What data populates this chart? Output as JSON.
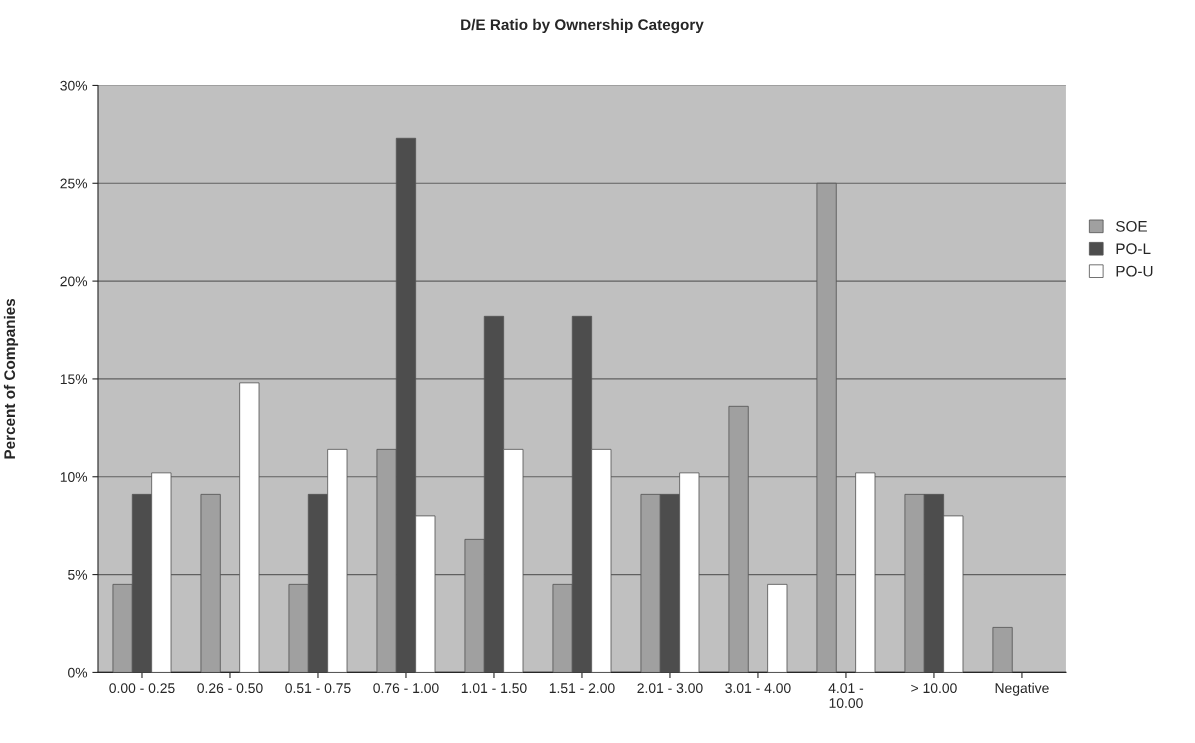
{
  "chart_data": {
    "type": "bar",
    "title": "D/E Ratio by Ownership Category",
    "ylabel": "Percent of Companies",
    "categories": [
      "0.00 - 0.25",
      "0.26 - 0.50",
      "0.51 - 0.75",
      "0.76 - 1.00",
      "1.01 - 1.50",
      "1.51 - 2.00",
      "2.01 - 3.00",
      "3.01 - 4.00",
      "4.01 -\n10.00",
      "> 10.00",
      "Negative"
    ],
    "series": [
      {
        "name": "SOE",
        "color": "#a0a0a0",
        "values": [
          4.5,
          9.1,
          4.5,
          11.4,
          6.8,
          4.5,
          9.1,
          13.6,
          25.0,
          9.1,
          2.3
        ]
      },
      {
        "name": "PO-L",
        "color": "#4d4d4d",
        "values": [
          9.1,
          null,
          9.1,
          27.3,
          18.2,
          18.2,
          9.1,
          null,
          null,
          9.1,
          null
        ]
      },
      {
        "name": "PO-U",
        "color": "#ffffff",
        "values": [
          10.2,
          14.8,
          11.4,
          8.0,
          11.4,
          11.4,
          10.2,
          4.5,
          10.2,
          8.0,
          null
        ]
      }
    ],
    "ylim": [
      0,
      30
    ],
    "yticks": [
      {
        "value": 0,
        "label": "0%"
      },
      {
        "value": 5,
        "label": "5%"
      },
      {
        "value": 10,
        "label": "10%"
      },
      {
        "value": 15,
        "label": "15%"
      },
      {
        "value": 20,
        "label": "20%"
      },
      {
        "value": 25,
        "label": "25%"
      },
      {
        "value": 30,
        "label": "30%"
      }
    ],
    "grid": "y",
    "legend": "right"
  }
}
